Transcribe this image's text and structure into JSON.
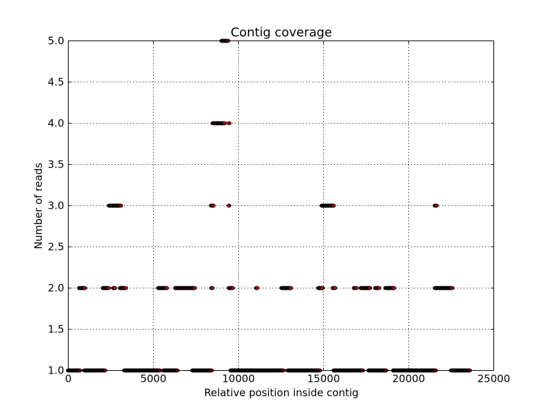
{
  "chart_data": {
    "type": "scatter",
    "title": "Contig coverage",
    "xlabel": "Relative position inside contig",
    "ylabel": "Number of reads",
    "xlim": [
      0,
      25000
    ],
    "ylim": [
      1.0,
      5.0
    ],
    "xticks": [
      0,
      5000,
      10000,
      15000,
      20000,
      25000
    ],
    "yticks": [
      1.0,
      1.5,
      2.0,
      2.5,
      3.0,
      3.5,
      4.0,
      4.5,
      5.0
    ],
    "xtick_labels": [
      "0",
      "5000",
      "10000",
      "15000",
      "20000",
      "25000"
    ],
    "ytick_labels": [
      "1.0",
      "1.5",
      "2.0",
      "2.5",
      "3.0",
      "3.5",
      "4.0",
      "4.5",
      "5.0"
    ],
    "grid": true,
    "marker_fill": "#b00000",
    "marker_edge": "#000000",
    "series": [
      {
        "segments": [
          {
            "y": 5,
            "x_start": 9020,
            "x_end": 9400
          },
          {
            "y": 4,
            "x_start": 8500,
            "x_end": 9200
          },
          {
            "y": 4,
            "x_start": 9450,
            "x_end": 9480
          },
          {
            "y": 3,
            "x_start": 2400,
            "x_end": 3100
          },
          {
            "y": 3,
            "x_start": 8400,
            "x_end": 8550
          },
          {
            "y": 3,
            "x_start": 9440,
            "x_end": 9470
          },
          {
            "y": 3,
            "x_start": 14900,
            "x_end": 15600
          },
          {
            "y": 3,
            "x_start": 21550,
            "x_end": 21650
          },
          {
            "y": 2,
            "x_start": 650,
            "x_end": 1000
          },
          {
            "y": 2,
            "x_start": 2050,
            "x_end": 2400
          },
          {
            "y": 2,
            "x_start": 2650,
            "x_end": 2750
          },
          {
            "y": 2,
            "x_start": 3050,
            "x_end": 3400
          },
          {
            "y": 2,
            "x_start": 5300,
            "x_end": 5800
          },
          {
            "y": 2,
            "x_start": 6300,
            "x_end": 7450
          },
          {
            "y": 2,
            "x_start": 8420,
            "x_end": 8470
          },
          {
            "y": 2,
            "x_start": 9450,
            "x_end": 9650
          },
          {
            "y": 2,
            "x_start": 11050,
            "x_end": 11100
          },
          {
            "y": 2,
            "x_start": 12550,
            "x_end": 13100
          },
          {
            "y": 2,
            "x_start": 14700,
            "x_end": 14950
          },
          {
            "y": 2,
            "x_start": 15550,
            "x_end": 15700
          },
          {
            "y": 2,
            "x_start": 16800,
            "x_end": 16950
          },
          {
            "y": 2,
            "x_start": 17200,
            "x_end": 17750
          },
          {
            "y": 2,
            "x_start": 18050,
            "x_end": 18250
          },
          {
            "y": 2,
            "x_start": 18650,
            "x_end": 19150
          },
          {
            "y": 2,
            "x_start": 21550,
            "x_end": 22550
          },
          {
            "y": 1,
            "x_start": 0,
            "x_end": 700
          },
          {
            "y": 1,
            "x_start": 950,
            "x_end": 2150
          },
          {
            "y": 1,
            "x_start": 3300,
            "x_end": 5400
          },
          {
            "y": 1,
            "x_start": 5600,
            "x_end": 6400
          },
          {
            "y": 1,
            "x_start": 7300,
            "x_end": 8450
          },
          {
            "y": 1,
            "x_start": 9550,
            "x_end": 12650
          },
          {
            "y": 1,
            "x_start": 12900,
            "x_end": 14800
          },
          {
            "y": 1,
            "x_start": 15600,
            "x_end": 16850
          },
          {
            "y": 1,
            "x_start": 16900,
            "x_end": 17300
          },
          {
            "y": 1,
            "x_start": 17650,
            "x_end": 18100
          },
          {
            "y": 1,
            "x_start": 18150,
            "x_end": 18700
          },
          {
            "y": 1,
            "x_start": 19100,
            "x_end": 21600
          },
          {
            "y": 1,
            "x_start": 22500,
            "x_end": 23600
          }
        ]
      }
    ]
  }
}
